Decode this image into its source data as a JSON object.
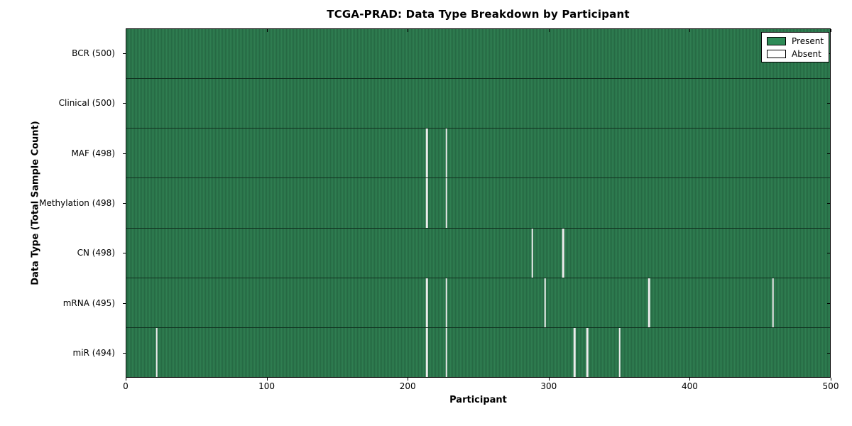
{
  "chart_data": {
    "type": "heatmap",
    "title": "TCGA-PRAD: Data Type Breakdown by Participant",
    "xlabel": "Participant",
    "ylabel": "Data Type (Total Sample Count)",
    "xlim": [
      0,
      500
    ],
    "x_ticks": [
      "0",
      "100",
      "200",
      "300",
      "400",
      "500"
    ],
    "n_participants": 500,
    "grid": false,
    "legend_position": "upper right",
    "colors": {
      "present": "#2E8B57",
      "present_dark_stripe": "#1D5638",
      "absent": "#FFFFFF",
      "row_separator": "#0F2F1E",
      "plot_border": "#000000"
    },
    "legend": [
      {
        "label": "Present",
        "color": "#2E8B57"
      },
      {
        "label": "Absent",
        "color": "#FFFFFF"
      }
    ],
    "rows": [
      {
        "label": "BCR (500)",
        "name": "BCR",
        "total_sample_count": 500,
        "absent_participants": []
      },
      {
        "label": "Clinical (500)",
        "name": "Clinical",
        "total_sample_count": 500,
        "absent_participants": []
      },
      {
        "label": "MAF (498)",
        "name": "MAF",
        "total_sample_count": 498,
        "absent_participants": [
          213,
          227
        ]
      },
      {
        "label": "Methylation (498)",
        "name": "Methylation",
        "total_sample_count": 498,
        "absent_participants": [
          213,
          227
        ]
      },
      {
        "label": "CN (498)",
        "name": "CN",
        "total_sample_count": 498,
        "absent_participants": [
          288,
          310
        ]
      },
      {
        "label": "mRNA (495)",
        "name": "mRNA",
        "total_sample_count": 495,
        "absent_participants": [
          213,
          227,
          297,
          371,
          459
        ]
      },
      {
        "label": "miR (494)",
        "name": "miR",
        "total_sample_count": 494,
        "absent_participants": [
          21,
          213,
          227,
          318,
          327,
          350
        ]
      }
    ]
  }
}
